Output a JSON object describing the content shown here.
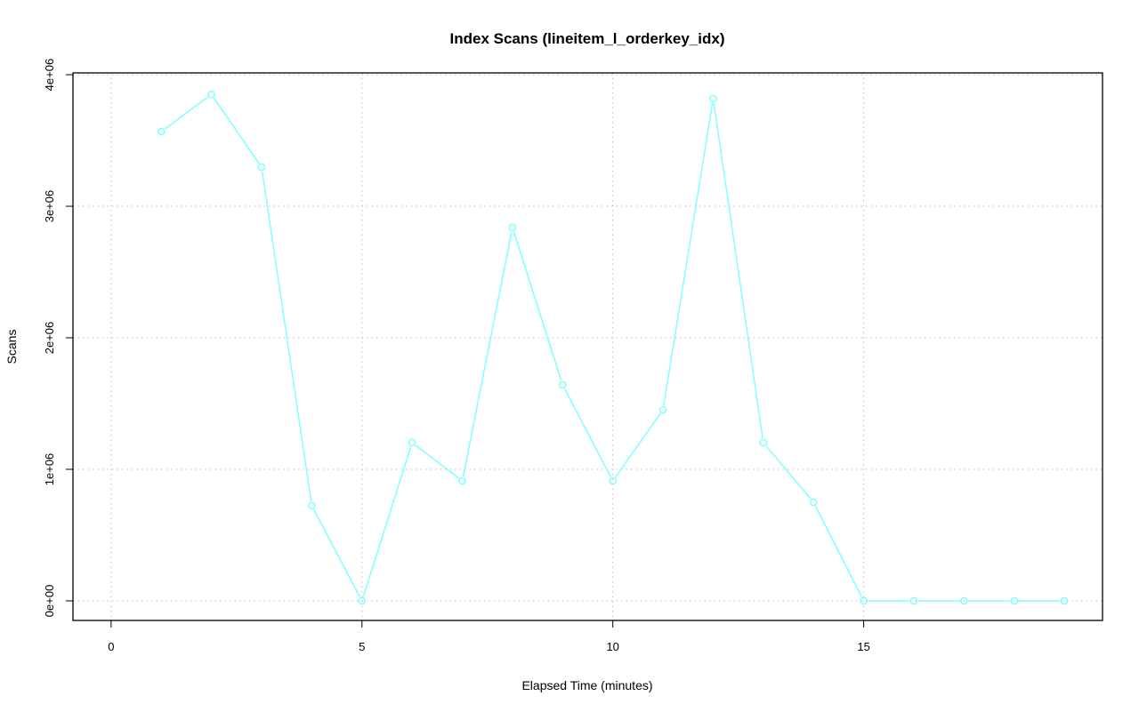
{
  "chart_data": {
    "type": "line",
    "title": "Index Scans (lineitem_l_orderkey_idx)",
    "xlabel": "Elapsed Time (minutes)",
    "ylabel": "Scans",
    "x": [
      1,
      2,
      3,
      4,
      5,
      6,
      7,
      8,
      9,
      10,
      11,
      12,
      13,
      14,
      15,
      16,
      17,
      18,
      19
    ],
    "series": [
      {
        "values": [
          3567000,
          3851000,
          3297000,
          723000,
          0,
          1203000,
          912000,
          2838000,
          1642000,
          912000,
          1453000,
          3818000,
          1203000,
          750000,
          0,
          0,
          0,
          0,
          0
        ]
      }
    ],
    "xlim": [
      -0.76,
      19.76
    ],
    "ylim": [
      -149000,
      4014000
    ],
    "xticks": [
      0,
      5,
      10,
      15
    ],
    "xtick_labels": [
      "0",
      "5",
      "10",
      "15"
    ],
    "yticks": [
      0,
      1000000,
      2000000,
      3000000,
      4000000
    ],
    "ytick_labels": [
      "0e+00",
      "1e+06",
      "2e+06",
      "3e+06",
      "4e+06"
    ],
    "grid": true,
    "line_color": "#7fffff",
    "marker": "open-circle"
  }
}
